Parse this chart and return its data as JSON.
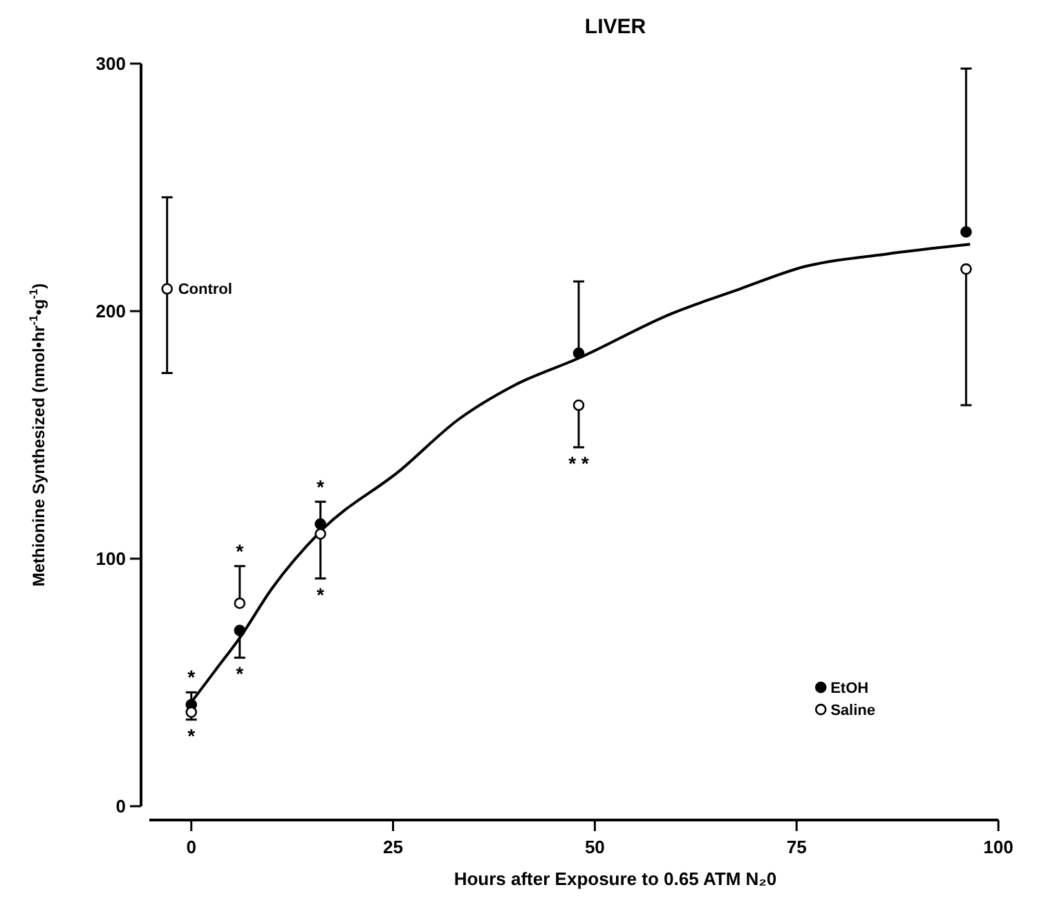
{
  "chart_data": {
    "type": "scatter",
    "title": "LIVER",
    "xlabel": "Hours after Exposure to 0.65 ATM N₂0",
    "ylabel": "Methionine Synthesized (nmol•hr$^{-1}$•g$^{-1}$)",
    "xlim": [
      -5.2,
      100
    ],
    "xticks": [
      0,
      25,
      50,
      75,
      100
    ],
    "ylim": [
      0,
      300
    ],
    "yticks": [
      0,
      100,
      200,
      300
    ],
    "grid": false,
    "legend": "bottom right",
    "marker": "circle",
    "series": [
      {
        "type": "line",
        "color": "#000000",
        "marker": "none",
        "x": [
          0,
          3,
          6,
          10,
          16,
          26,
          33,
          40,
          48,
          59.5,
          68,
          76,
          86,
          96.5
        ],
        "values": [
          42,
          55,
          68,
          88,
          111,
          136,
          156,
          170,
          181,
          199,
          209,
          218,
          223,
          227
        ]
      },
      {
        "name": "EtOH",
        "color": "#000000",
        "x": [
          0,
          6,
          16,
          48,
          96
        ],
        "values": [
          41,
          71,
          114,
          183,
          232
        ],
        "errors": [
          null,
          [
            60,
            71
          ],
          null,
          [
            183,
            212
          ],
          [
            232,
            298
          ]
        ]
      },
      {
        "name": "Saline",
        "color": "#ffffff",
        "x": [
          0,
          6,
          16,
          48,
          96
        ],
        "values": [
          38,
          82,
          110,
          162,
          217
        ],
        "errors": [
          [
            35,
            46
          ],
          [
            82,
            97
          ],
          [
            92,
            123
          ],
          [
            145,
            162
          ],
          [
            162,
            217
          ]
        ]
      },
      {
        "name": "Control",
        "color": "#ffffff",
        "x": [
          -3
        ],
        "values": [
          209
        ],
        "errors": [
          [
            175,
            246
          ]
        ]
      }
    ],
    "annotations": [
      {
        "text": "*",
        "x": 0,
        "y": 46
      },
      {
        "text": "*",
        "x": 0,
        "y": 35
      },
      {
        "text": "*",
        "x": 6,
        "y": 97
      },
      {
        "text": "*",
        "x": 6,
        "y": 60
      },
      {
        "text": "*",
        "x": 16,
        "y": 123
      },
      {
        "text": "*",
        "x": 16,
        "y": 92
      },
      {
        "text": "* *",
        "x": 48,
        "y": 145
      }
    ]
  }
}
